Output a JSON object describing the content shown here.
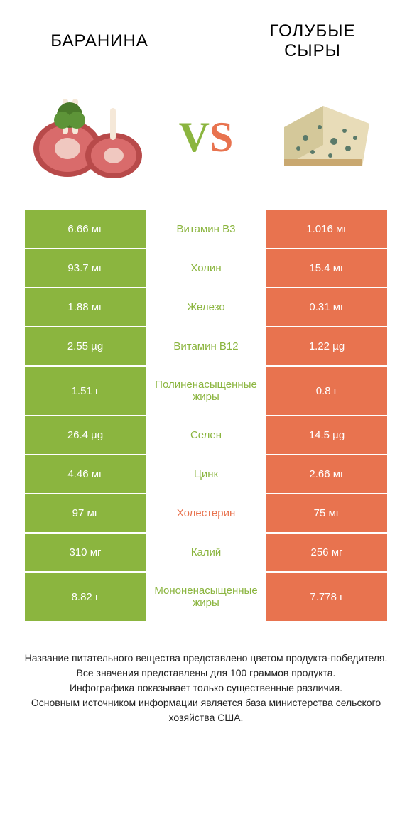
{
  "header": {
    "left_title": "БАРАНИНА",
    "right_title": "ГОЛУБЫЕ СЫРЫ",
    "vs_v": "V",
    "vs_s": "S"
  },
  "colors": {
    "left": "#8bb53f",
    "right": "#e8734f",
    "bg": "#ffffff"
  },
  "rows": [
    {
      "left": "6.66 мг",
      "mid": "Витамин B3",
      "right": "1.016 мг",
      "winner": "left",
      "tall": false
    },
    {
      "left": "93.7 мг",
      "mid": "Холин",
      "right": "15.4 мг",
      "winner": "left",
      "tall": false
    },
    {
      "left": "1.88 мг",
      "mid": "Железо",
      "right": "0.31 мг",
      "winner": "left",
      "tall": false
    },
    {
      "left": "2.55 µg",
      "mid": "Витамин B12",
      "right": "1.22 µg",
      "winner": "left",
      "tall": false
    },
    {
      "left": "1.51 г",
      "mid": "Полиненасыщенные жиры",
      "right": "0.8 г",
      "winner": "left",
      "tall": true
    },
    {
      "left": "26.4 µg",
      "mid": "Селен",
      "right": "14.5 µg",
      "winner": "left",
      "tall": false
    },
    {
      "left": "4.46 мг",
      "mid": "Цинк",
      "right": "2.66 мг",
      "winner": "left",
      "tall": false
    },
    {
      "left": "97 мг",
      "mid": "Холестерин",
      "right": "75 мг",
      "winner": "right",
      "tall": false
    },
    {
      "left": "310 мг",
      "mid": "Калий",
      "right": "256 мг",
      "winner": "left",
      "tall": false
    },
    {
      "left": "8.82 г",
      "mid": "Мононенасыщенные жиры",
      "right": "7.778 г",
      "winner": "left",
      "tall": true
    }
  ],
  "footer": {
    "line1": "Название питательного вещества представлено цветом продукта-победителя.",
    "line2": "Все значения представлены для 100 граммов продукта.",
    "line3": "Инфографика показывает только существенные различия.",
    "line4": "Основным источником информации является база министерства сельского хозяйства США."
  }
}
